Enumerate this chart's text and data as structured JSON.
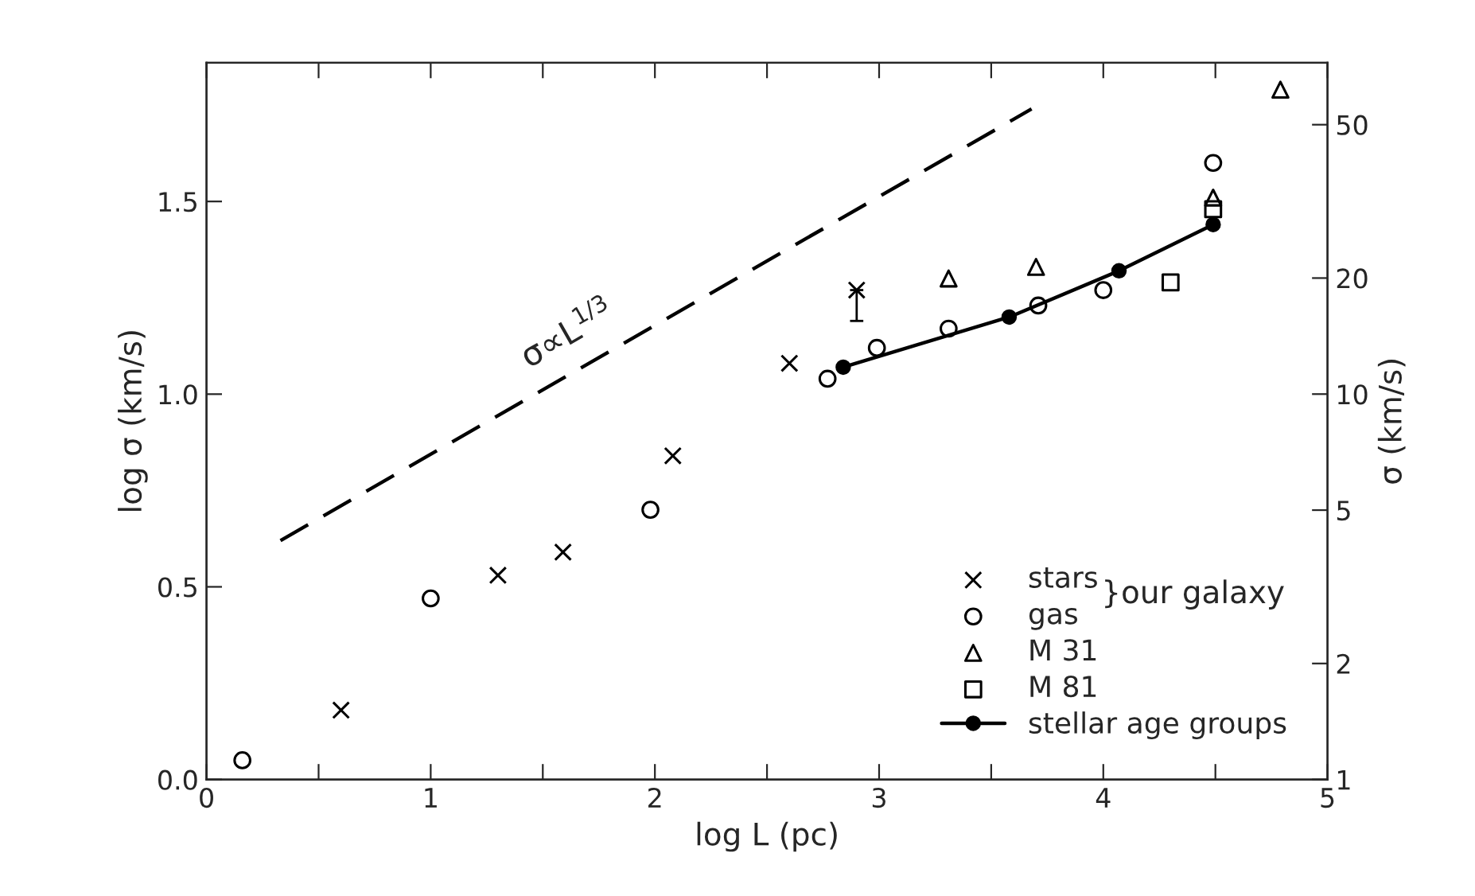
{
  "chart_data": {
    "type": "scatter",
    "xlabel": "log L (pc)",
    "ylabel": "log σ (km/s)",
    "y2label": "σ (km/s)",
    "xlim": [
      0,
      5
    ],
    "xticks": [
      0,
      {
        "value": 0.5,
        "label": null
      },
      1,
      {
        "value": 1.5,
        "label": null
      },
      2,
      {
        "value": 2.5,
        "label": null
      },
      3,
      {
        "value": 3.5,
        "label": null
      },
      4,
      {
        "value": 4.5,
        "label": null
      },
      5
    ],
    "ylim": [
      0,
      1.86
    ],
    "yticks": [
      {
        "value": 0,
        "label": "0.0"
      },
      0.5,
      {
        "value": 1,
        "label": "1.0"
      },
      1.5
    ],
    "log": "y2",
    "y2lim": [
      1,
      72.4
    ],
    "y2ticks": [
      1,
      2,
      5,
      10,
      20,
      50
    ],
    "grid": false,
    "legend": "bottom right",
    "annotations": [
      "σ∝L$^{1/3}$",
      "}our galaxy"
    ],
    "series": [
      {
        "name": "stars",
        "marker": "cross",
        "color": "#000000",
        "x": [
          0.6,
          1.3,
          1.59,
          2.08,
          2.6,
          2.9
        ],
        "values": [
          0.18,
          0.53,
          0.59,
          0.84,
          1.08,
          1.27
        ],
        "errors": [
          null,
          null,
          null,
          null,
          null,
          [
            1.19,
            1.27
          ]
        ]
      },
      {
        "name": "gas",
        "marker": "circle",
        "color": "#000000",
        "x": [
          0.16,
          1.0,
          1.98,
          2.77,
          2.99,
          3.31,
          3.71,
          4.0,
          4.49
        ],
        "values": [
          0.05,
          0.47,
          0.7,
          1.04,
          1.12,
          1.17,
          1.23,
          1.27,
          1.6
        ]
      },
      {
        "name": "M 31",
        "marker": "triangle",
        "color": "#000000",
        "x": [
          3.31,
          3.7,
          4.49,
          4.79
        ],
        "values": [
          1.3,
          1.33,
          1.51,
          1.79
        ]
      },
      {
        "name": "M 81",
        "marker": "square",
        "color": "#000000",
        "x": [
          4.3,
          4.49
        ],
        "values": [
          1.29,
          1.48
        ]
      },
      {
        "name": "stellar age groups",
        "type": "line",
        "marker": "circle",
        "line_style": "solid",
        "color": "#000000",
        "x": [
          2.84,
          3.58,
          4.07,
          4.49
        ],
        "values": [
          1.07,
          1.2,
          1.32,
          1.44
        ]
      },
      {
        "type": "line",
        "marker": "none",
        "line_style": "dashed",
        "color": "#000000",
        "x": [
          0.33,
          3.68
        ],
        "values": [
          0.62,
          1.74
        ]
      }
    ]
  }
}
